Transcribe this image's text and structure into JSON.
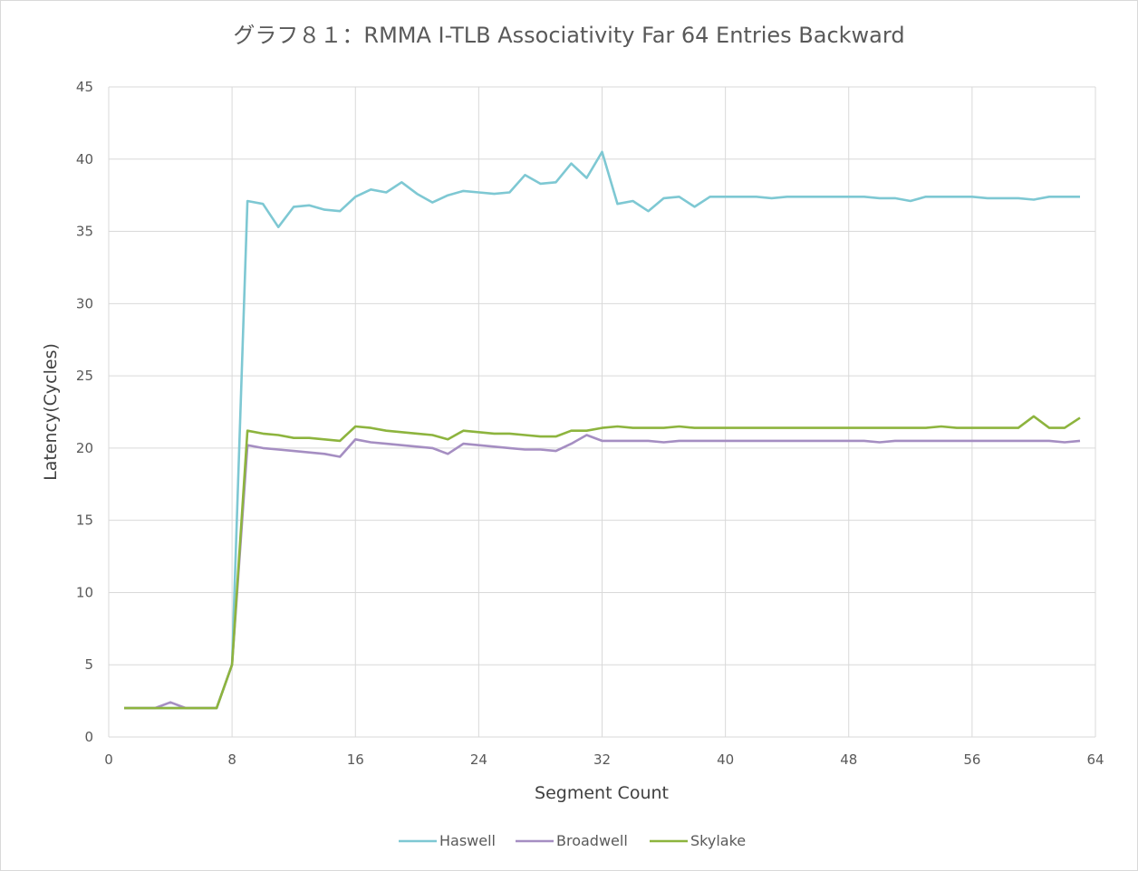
{
  "chart_data": {
    "type": "line",
    "title": "グラフ８１：RMMA I-TLB Associativity Far 64 Entries Backward",
    "xlabel": "Segment Count",
    "ylabel": "Latency(Cycles)",
    "xlim": [
      0,
      64
    ],
    "ylim": [
      0,
      45
    ],
    "x_ticks": [
      0,
      8,
      16,
      24,
      32,
      40,
      48,
      56,
      64
    ],
    "y_ticks": [
      0,
      5,
      10,
      15,
      20,
      25,
      30,
      35,
      40,
      45
    ],
    "grid": true,
    "legend_position": "bottom",
    "x": [
      1,
      2,
      3,
      4,
      5,
      6,
      7,
      8,
      9,
      10,
      11,
      12,
      13,
      14,
      15,
      16,
      17,
      18,
      19,
      20,
      21,
      22,
      23,
      24,
      25,
      26,
      27,
      28,
      29,
      30,
      31,
      32,
      33,
      34,
      35,
      36,
      37,
      38,
      39,
      40,
      41,
      42,
      43,
      44,
      45,
      46,
      47,
      48,
      49,
      50,
      51,
      52,
      53,
      54,
      55,
      56,
      57,
      58,
      59,
      60,
      61,
      62,
      63
    ],
    "series": [
      {
        "name": "Haswell",
        "color": "#7ec8d3",
        "values": [
          2,
          2,
          2,
          2,
          2,
          2,
          2,
          5,
          37.1,
          36.9,
          35.3,
          36.7,
          36.8,
          36.5,
          36.4,
          37.4,
          37.9,
          37.7,
          38.4,
          37.6,
          37,
          37.5,
          37.8,
          37.7,
          37.6,
          37.7,
          38.9,
          38.3,
          38.4,
          39.7,
          38.7,
          40.5,
          36.9,
          37.1,
          36.4,
          37.3,
          37.4,
          36.7,
          37.4,
          37.4,
          37.4,
          37.4,
          37.3,
          37.4,
          37.4,
          37.4,
          37.4,
          37.4,
          37.4,
          37.3,
          37.3,
          37.1,
          37.4,
          37.4,
          37.4,
          37.4,
          37.3,
          37.3,
          37.3,
          37.2,
          37.4,
          37.4,
          37.4
        ]
      },
      {
        "name": "Broadwell",
        "color": "#a58ec2",
        "values": [
          2,
          2,
          2,
          2.4,
          2,
          2,
          2,
          5,
          20.2,
          20,
          19.9,
          19.8,
          19.7,
          19.6,
          19.4,
          20.6,
          20.4,
          20.3,
          20.2,
          20.1,
          20,
          19.6,
          20.3,
          20.2,
          20.1,
          20,
          19.9,
          19.9,
          19.8,
          20.3,
          20.9,
          20.5,
          20.5,
          20.5,
          20.5,
          20.4,
          20.5,
          20.5,
          20.5,
          20.5,
          20.5,
          20.5,
          20.5,
          20.5,
          20.5,
          20.5,
          20.5,
          20.5,
          20.5,
          20.4,
          20.5,
          20.5,
          20.5,
          20.5,
          20.5,
          20.5,
          20.5,
          20.5,
          20.5,
          20.5,
          20.5,
          20.4,
          20.5
        ]
      },
      {
        "name": "Skylake",
        "color": "#8db43e",
        "values": [
          2,
          2,
          2,
          2,
          2,
          2,
          2,
          5,
          21.2,
          21,
          20.9,
          20.7,
          20.7,
          20.6,
          20.5,
          21.5,
          21.4,
          21.2,
          21.1,
          21,
          20.9,
          20.6,
          21.2,
          21.1,
          21,
          21,
          20.9,
          20.8,
          20.8,
          21.2,
          21.2,
          21.4,
          21.5,
          21.4,
          21.4,
          21.4,
          21.5,
          21.4,
          21.4,
          21.4,
          21.4,
          21.4,
          21.4,
          21.4,
          21.4,
          21.4,
          21.4,
          21.4,
          21.4,
          21.4,
          21.4,
          21.4,
          21.4,
          21.5,
          21.4,
          21.4,
          21.4,
          21.4,
          21.4,
          22.2,
          21.4,
          21.4,
          22.1
        ]
      }
    ]
  }
}
